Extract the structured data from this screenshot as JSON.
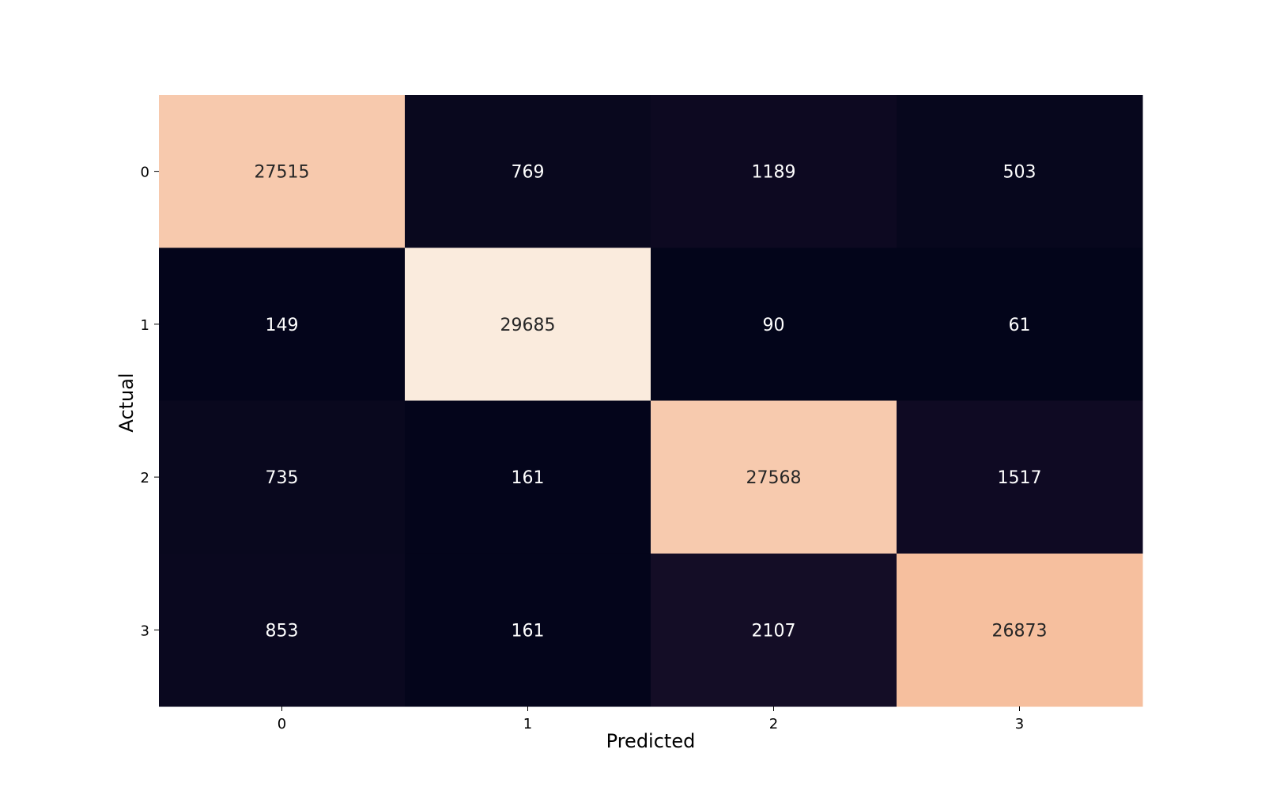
{
  "chart_data": {
    "type": "heatmap",
    "title": "",
    "xlabel": "Predicted",
    "ylabel": "Actual",
    "x_categories": [
      "0",
      "1",
      "2",
      "3"
    ],
    "y_categories": [
      "0",
      "1",
      "2",
      "3"
    ],
    "values": [
      [
        27515,
        769,
        1189,
        503
      ],
      [
        149,
        29685,
        90,
        61
      ],
      [
        735,
        161,
        27568,
        1517
      ],
      [
        853,
        161,
        2107,
        26873
      ]
    ],
    "colormap": "rocket",
    "colorbar": false,
    "annotated": true,
    "colors": {
      "low": "#03051a",
      "high": "#faebdd",
      "text_light": "#ffffff",
      "text_dark": "#262626"
    }
  }
}
